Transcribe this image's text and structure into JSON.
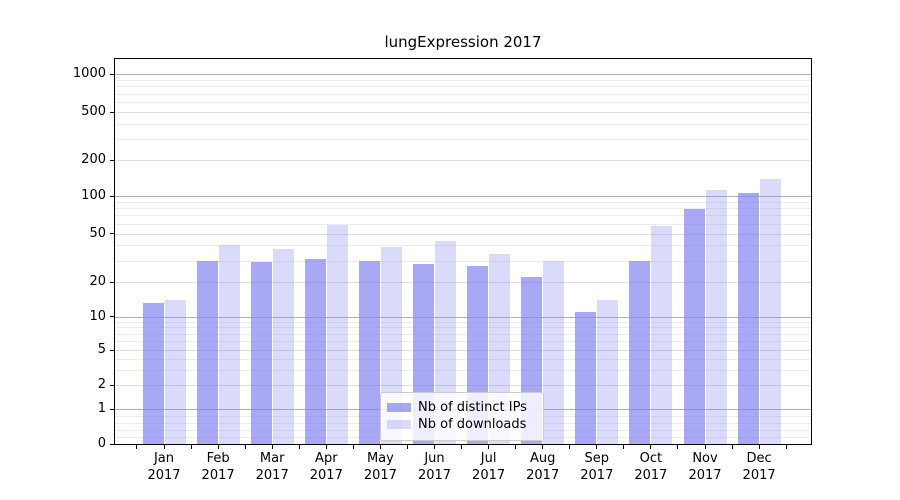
{
  "chart_data": {
    "type": "bar",
    "title": "lungExpression 2017",
    "year": "2017",
    "months": [
      "Jan",
      "Feb",
      "Mar",
      "Apr",
      "May",
      "Jun",
      "Jul",
      "Aug",
      "Sep",
      "Oct",
      "Nov",
      "Dec"
    ],
    "categories": [
      "Jan 2017",
      "Feb 2017",
      "Mar 2017",
      "Apr 2017",
      "May 2017",
      "Jun 2017",
      "Jul 2017",
      "Aug 2017",
      "Sep 2017",
      "Oct 2017",
      "Nov 2017",
      "Dec 2017"
    ],
    "series": [
      {
        "name": "Nb of distinct IPs",
        "color": "#a8a8f4",
        "fill": "rgba(131,131,240,0.7)",
        "values": [
          13,
          30,
          29,
          31,
          30,
          28,
          27,
          22,
          11,
          30,
          78,
          105
        ]
      },
      {
        "name": "Nb of downloads",
        "color": "#dbdbfa",
        "fill": "rgba(131,131,240,0.3)",
        "values": [
          14,
          40,
          37,
          58,
          39,
          43,
          34,
          30,
          14,
          57,
          113,
          140
        ]
      }
    ],
    "yscale": "symlog",
    "yticks": [
      0,
      1,
      2,
      5,
      10,
      20,
      50,
      100,
      200,
      500,
      1000
    ],
    "ylim": [
      0,
      1300
    ],
    "xlabel": "",
    "ylabel": "",
    "grid": "horizontal major and minor gridlines",
    "legend_position": "lower center inside plot"
  },
  "colors": {
    "grid_major": "#b0b0b0",
    "grid_mid": "#dedede",
    "grid_minor": "#ececec",
    "axis": "#000000",
    "legend_border": "#cccccc"
  }
}
